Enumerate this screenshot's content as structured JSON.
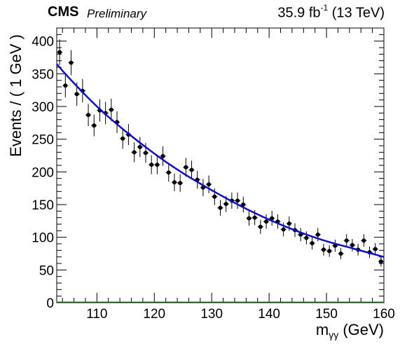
{
  "header": {
    "experiment": "CMS",
    "status": "Preliminary",
    "lumi": "35.9 fb",
    "lumi_exp": "-1",
    "energy": " (13 TeV)"
  },
  "chart_data": {
    "type": "scatter",
    "title": "",
    "xlabel": "m_γγ (GeV)",
    "ylabel": "Events / ( 1 GeV )",
    "xlim": [
      103,
      160
    ],
    "ylim": [
      0,
      420
    ],
    "xticks": [
      110,
      120,
      130,
      140,
      150,
      160
    ],
    "yticks": [
      0,
      50,
      100,
      150,
      200,
      250,
      300,
      350,
      400
    ],
    "series": [
      {
        "kind": "points_with_errors",
        "color": "#000000",
        "points": [
          {
            "x": 103.5,
            "y": 383
          },
          {
            "x": 104.5,
            "y": 332
          },
          {
            "x": 105.5,
            "y": 367
          },
          {
            "x": 106.5,
            "y": 319
          },
          {
            "x": 107.5,
            "y": 324
          },
          {
            "x": 108.5,
            "y": 287
          },
          {
            "x": 109.5,
            "y": 271
          },
          {
            "x": 110.5,
            "y": 294
          },
          {
            "x": 111.5,
            "y": 290
          },
          {
            "x": 112.5,
            "y": 295
          },
          {
            "x": 113.5,
            "y": 276
          },
          {
            "x": 114.5,
            "y": 251
          },
          {
            "x": 115.5,
            "y": 257
          },
          {
            "x": 116.5,
            "y": 230
          },
          {
            "x": 117.5,
            "y": 238
          },
          {
            "x": 118.5,
            "y": 229
          },
          {
            "x": 119.5,
            "y": 211
          },
          {
            "x": 120.5,
            "y": 211
          },
          {
            "x": 121.5,
            "y": 224
          },
          {
            "x": 122.5,
            "y": 199
          },
          {
            "x": 123.5,
            "y": 184
          },
          {
            "x": 124.5,
            "y": 183
          },
          {
            "x": 125.5,
            "y": 207
          },
          {
            "x": 126.5,
            "y": 203
          },
          {
            "x": 127.5,
            "y": 188
          },
          {
            "x": 128.5,
            "y": 176
          },
          {
            "x": 129.5,
            "y": 181
          },
          {
            "x": 130.5,
            "y": 162
          },
          {
            "x": 131.5,
            "y": 145
          },
          {
            "x": 132.5,
            "y": 151
          },
          {
            "x": 133.5,
            "y": 156
          },
          {
            "x": 134.5,
            "y": 156
          },
          {
            "x": 135.5,
            "y": 150
          },
          {
            "x": 136.5,
            "y": 129
          },
          {
            "x": 137.5,
            "y": 130
          },
          {
            "x": 138.5,
            "y": 116
          },
          {
            "x": 139.5,
            "y": 124
          },
          {
            "x": 140.5,
            "y": 129
          },
          {
            "x": 141.5,
            "y": 124
          },
          {
            "x": 142.5,
            "y": 112
          },
          {
            "x": 143.5,
            "y": 121
          },
          {
            "x": 144.5,
            "y": 111
          },
          {
            "x": 145.5,
            "y": 104
          },
          {
            "x": 146.5,
            "y": 99
          },
          {
            "x": 147.5,
            "y": 91
          },
          {
            "x": 148.5,
            "y": 104
          },
          {
            "x": 149.5,
            "y": 81
          },
          {
            "x": 150.5,
            "y": 79
          },
          {
            "x": 151.5,
            "y": 87
          },
          {
            "x": 152.5,
            "y": 75
          },
          {
            "x": 153.5,
            "y": 95
          },
          {
            "x": 154.5,
            "y": 88
          },
          {
            "x": 155.5,
            "y": 81
          },
          {
            "x": 156.5,
            "y": 95
          },
          {
            "x": 157.5,
            "y": 77
          },
          {
            "x": 158.5,
            "y": 82
          },
          {
            "x": 159.5,
            "y": 63
          }
        ]
      },
      {
        "kind": "fit_curve",
        "color": "#1010cc",
        "points": [
          {
            "x": 103,
            "y": 365
          },
          {
            "x": 105,
            "y": 345
          },
          {
            "x": 110,
            "y": 300
          },
          {
            "x": 115,
            "y": 262
          },
          {
            "x": 120,
            "y": 228
          },
          {
            "x": 125,
            "y": 198
          },
          {
            "x": 130,
            "y": 172
          },
          {
            "x": 135,
            "y": 148
          },
          {
            "x": 140,
            "y": 127
          },
          {
            "x": 145,
            "y": 109
          },
          {
            "x": 150,
            "y": 94
          },
          {
            "x": 155,
            "y": 82
          },
          {
            "x": 160,
            "y": 70
          }
        ]
      }
    ]
  }
}
